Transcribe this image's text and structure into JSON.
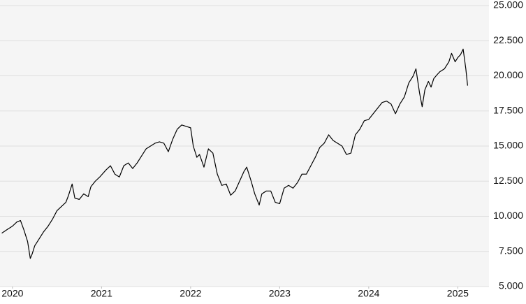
{
  "chart_data": {
    "type": "line",
    "color": "#000000",
    "grid": true,
    "xlim": [
      2019.86,
      2025.35
    ],
    "xticks": [
      2020,
      2021,
      2022,
      2023,
      2024,
      2025
    ],
    "ylim": [
      5000,
      25000
    ],
    "yticks": [
      {
        "value": 5000,
        "label": "5.000"
      },
      {
        "value": 7500,
        "label": "7.500"
      },
      {
        "value": 10000,
        "label": "10.000"
      },
      {
        "value": 12500,
        "label": "12.500"
      },
      {
        "value": 15000,
        "label": "15.000"
      },
      {
        "value": 17500,
        "label": "17.500"
      },
      {
        "value": 20000,
        "label": "20.000"
      },
      {
        "value": 22500,
        "label": "22.500"
      },
      {
        "value": 25000,
        "label": "25.000"
      }
    ],
    "x": [
      2019.88,
      2019.95,
      2020.0,
      2020.05,
      2020.09,
      2020.13,
      2020.17,
      2020.2,
      2020.22,
      2020.25,
      2020.3,
      2020.35,
      2020.4,
      2020.45,
      2020.5,
      2020.55,
      2020.6,
      2020.63,
      2020.67,
      2020.7,
      2020.75,
      2020.8,
      2020.85,
      2020.88,
      2020.93,
      2020.98,
      2021.05,
      2021.1,
      2021.15,
      2021.2,
      2021.25,
      2021.3,
      2021.35,
      2021.4,
      2021.45,
      2021.5,
      2021.55,
      2021.6,
      2021.65,
      2021.7,
      2021.75,
      2021.8,
      2021.85,
      2021.9,
      2021.95,
      2022.0,
      2022.03,
      2022.07,
      2022.1,
      2022.15,
      2022.2,
      2022.25,
      2022.3,
      2022.35,
      2022.4,
      2022.45,
      2022.5,
      2022.55,
      2022.6,
      2022.63,
      2022.68,
      2022.72,
      2022.77,
      2022.8,
      2022.85,
      2022.9,
      2022.95,
      2023.0,
      2023.05,
      2023.1,
      2023.15,
      2023.2,
      2023.25,
      2023.3,
      2023.35,
      2023.4,
      2023.45,
      2023.5,
      2023.55,
      2023.6,
      2023.65,
      2023.7,
      2023.75,
      2023.8,
      2023.85,
      2023.9,
      2023.95,
      2024.0,
      2024.05,
      2024.1,
      2024.15,
      2024.2,
      2024.25,
      2024.3,
      2024.35,
      2024.4,
      2024.45,
      2024.5,
      2024.53,
      2024.57,
      2024.6,
      2024.63,
      2024.67,
      2024.7,
      2024.73,
      2024.77,
      2024.8,
      2024.85,
      2024.9,
      2024.93,
      2024.97,
      2025.0,
      2025.03,
      2025.06,
      2025.09,
      2025.11
    ],
    "values": [
      8800,
      9100,
      9300,
      9600,
      9700,
      9000,
      8200,
      7000,
      7300,
      7900,
      8400,
      8900,
      9300,
      9800,
      10400,
      10700,
      11000,
      11500,
      12300,
      11300,
      11200,
      11600,
      11400,
      12100,
      12500,
      12800,
      13300,
      13600,
      13000,
      12800,
      13600,
      13800,
      13400,
      13800,
      14300,
      14800,
      15000,
      15200,
      15300,
      15200,
      14600,
      15500,
      16200,
      16500,
      16400,
      16300,
      15000,
      14200,
      14400,
      13500,
      14800,
      14500,
      13000,
      12200,
      12300,
      11500,
      11800,
      12500,
      13200,
      13500,
      12500,
      11600,
      10800,
      11600,
      11800,
      11800,
      11000,
      10900,
      12000,
      12200,
      12000,
      12400,
      13000,
      13000,
      13600,
      14200,
      14900,
      15200,
      15800,
      15400,
      15200,
      15000,
      14400,
      14500,
      15800,
      16200,
      16800,
      16900,
      17300,
      17700,
      18100,
      18200,
      18000,
      17300,
      18000,
      18500,
      19500,
      20000,
      20500,
      18800,
      17800,
      19000,
      19600,
      19200,
      19800,
      20100,
      20300,
      20500,
      21000,
      21600,
      21000,
      21300,
      21500,
      21900,
      20500,
      19300
    ]
  }
}
